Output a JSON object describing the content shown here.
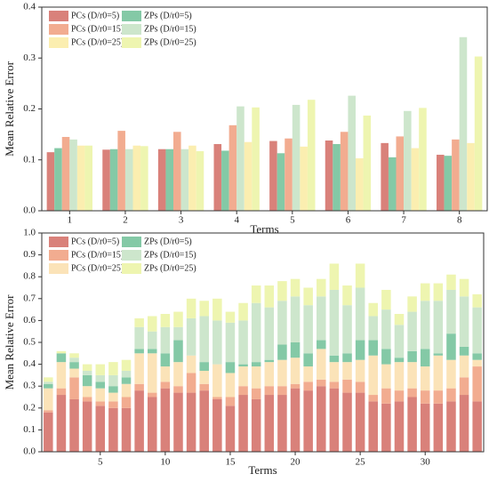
{
  "chart_data": [
    {
      "type": "bar",
      "xlabel": "Terms",
      "ylabel": "Mean Relative Error",
      "categories": [
        "1",
        "2",
        "3",
        "4",
        "5",
        "6",
        "7",
        "8"
      ],
      "ylim": [
        0,
        0.4
      ],
      "yticks": [
        {
          "value": 0,
          "label": "0.0"
        },
        0.1,
        0.2,
        0.3,
        0.4
      ],
      "legend": "upper left",
      "series": [
        {
          "name": "PCs (D/r0=5)",
          "color": "#d9817a",
          "values": [
            0.115,
            0.12,
            0.121,
            0.131,
            0.137,
            0.138,
            0.133,
            0.11
          ]
        },
        {
          "name": "ZPs (D/r0=5)",
          "color": "#84c9a6",
          "values": [
            0.123,
            0.121,
            0.121,
            0.118,
            0.113,
            0.131,
            0.105,
            0.108
          ]
        },
        {
          "name": "PCs (D/r0=15)",
          "color": "#f2ac90",
          "values": [
            0.145,
            0.157,
            0.155,
            0.168,
            0.142,
            0.155,
            0.146,
            0.14
          ]
        },
        {
          "name": "ZPs (D/r0=15)",
          "color": "#cde6cc",
          "values": [
            0.14,
            0.121,
            0.121,
            0.205,
            0.208,
            0.226,
            0.196,
            0.341
          ]
        },
        {
          "name": "PCs (D/r0=25)",
          "color": "#fbeeb0",
          "values": [
            0.128,
            0.128,
            0.128,
            0.135,
            0.126,
            0.103,
            0.123,
            0.133
          ]
        },
        {
          "name": "ZPs (D/r0=25)",
          "color": "#eef5b0",
          "values": [
            0.128,
            0.127,
            0.117,
            0.203,
            0.218,
            0.187,
            0.202,
            0.303
          ]
        }
      ]
    },
    {
      "type": "stacked_bar",
      "xlabel": "Terms",
      "ylabel": "Mean Relative Error",
      "x": [
        1,
        2,
        3,
        4,
        5,
        6,
        7,
        8,
        9,
        10,
        11,
        12,
        13,
        14,
        15,
        16,
        17,
        18,
        19,
        20,
        21,
        22,
        23,
        24,
        25,
        26,
        27,
        28,
        29,
        30,
        31,
        32,
        33,
        34
      ],
      "xlim": [
        0.5,
        34.5
      ],
      "xticks": [
        5,
        10,
        15,
        20,
        25,
        30
      ],
      "ylim": [
        0,
        1.0
      ],
      "yticks": [
        {
          "value": 0,
          "label": "0.0"
        },
        0.1,
        0.2,
        0.3,
        0.4,
        0.5,
        0.6,
        0.7,
        0.8,
        0.9,
        {
          "value": 1.0,
          "label": "1.0"
        }
      ],
      "legend": "upper left",
      "series": [
        {
          "name": "PCs (D/r0=5)",
          "color": "#d9817a",
          "values": [
            0.18,
            0.26,
            0.24,
            0.23,
            0.21,
            0.2,
            0.2,
            0.28,
            0.25,
            0.29,
            0.27,
            0.27,
            0.28,
            0.24,
            0.21,
            0.26,
            0.24,
            0.26,
            0.26,
            0.29,
            0.28,
            0.3,
            0.29,
            0.27,
            0.27,
            0.23,
            0.22,
            0.23,
            0.25,
            0.22,
            0.22,
            0.23,
            0.26,
            0.23
          ]
        },
        {
          "name": "PCs (D/r0=15)",
          "color": "#f2ac90",
          "values": [
            0.01,
            0.03,
            0.1,
            0.02,
            0.02,
            0.03,
            0.05,
            0.03,
            0.02,
            0.03,
            0.03,
            0.09,
            0.03,
            0.01,
            0.04,
            0.04,
            0.05,
            0.04,
            0.04,
            0.02,
            0.04,
            0.03,
            0.03,
            0.06,
            0.05,
            0.03,
            0.07,
            0.05,
            0.04,
            0.06,
            0.06,
            0.06,
            0.08,
            0.16
          ]
        },
        {
          "name": "PCs (D/r0=25)",
          "color": "#fbe3b8",
          "values": [
            0.1,
            0.12,
            0.04,
            0.05,
            0.06,
            0.04,
            0.06,
            0.14,
            0.18,
            0.07,
            0.11,
            0.08,
            0.06,
            0.15,
            0.11,
            0.09,
            0.1,
            0.11,
            0.12,
            0.12,
            0.07,
            0.14,
            0.09,
            0.08,
            0.1,
            0.18,
            0.11,
            0.13,
            0.12,
            0.11,
            0.16,
            0.13,
            0.1,
            0.03
          ]
        },
        {
          "name": "ZPs (D/r0=5)",
          "color": "#84c9a6",
          "values": [
            0.02,
            0.04,
            0.03,
            0.05,
            0.03,
            0.03,
            0.03,
            0.02,
            0.02,
            0.06,
            0.1,
            0.0,
            0.04,
            0.0,
            0.05,
            0.01,
            0.02,
            0.01,
            0.07,
            0.07,
            0.06,
            0.04,
            0.03,
            0.04,
            0.09,
            0.07,
            0.07,
            0.02,
            0.05,
            0.08,
            0.01,
            0.12,
            0.04,
            0.03
          ]
        },
        {
          "name": "ZPs (D/r0=15)",
          "color": "#cde6cc",
          "values": [
            0.01,
            0.0,
            0.02,
            0.02,
            0.03,
            0.05,
            0.03,
            0.1,
            0.08,
            0.12,
            0.06,
            0.17,
            0.21,
            0.2,
            0.18,
            0.2,
            0.27,
            0.24,
            0.2,
            0.21,
            0.22,
            0.2,
            0.3,
            0.22,
            0.24,
            0.11,
            0.18,
            0.15,
            0.18,
            0.22,
            0.24,
            0.2,
            0.23,
            0.21
          ]
        },
        {
          "name": "ZPs (D/r0=25)",
          "color": "#eef5b0",
          "values": [
            0.02,
            0.01,
            0.02,
            0.03,
            0.05,
            0.06,
            0.05,
            0.04,
            0.07,
            0.06,
            0.07,
            0.09,
            0.07,
            0.1,
            0.05,
            0.08,
            0.08,
            0.1,
            0.09,
            0.08,
            0.08,
            0.08,
            0.12,
            0.09,
            0.11,
            0.06,
            0.09,
            0.05,
            0.07,
            0.08,
            0.08,
            0.07,
            0.08,
            0.06
          ]
        }
      ]
    }
  ]
}
